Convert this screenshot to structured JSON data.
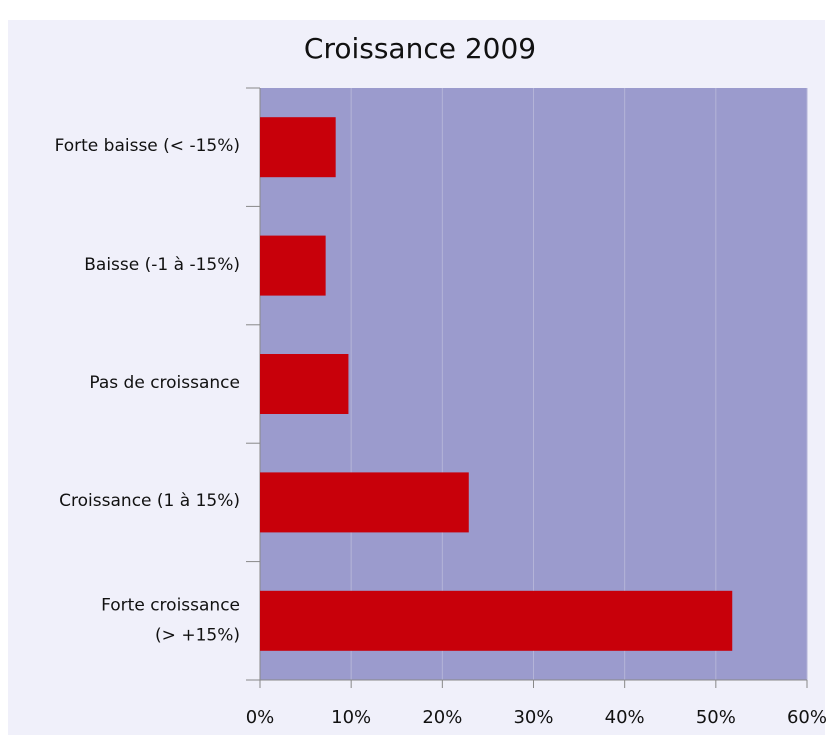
{
  "chart_data": {
    "type": "bar",
    "orientation": "horizontal",
    "title": "Croissance 2009",
    "categories": [
      "Forte baisse (< -15%)",
      "Baisse (-1 à -15%)",
      "Pas de croissance",
      "Croissance (1 à 15%)",
      "Forte croissance\n(> +15%)"
    ],
    "values": [
      8.3,
      7.2,
      9.7,
      22.9,
      51.8
    ],
    "color": "#c8000a",
    "plot_background": "#9b9bcd",
    "xlim": [
      0,
      60
    ],
    "xticks": [
      {
        "value": 0,
        "label": "0%"
      },
      {
        "value": 10,
        "label": "10%"
      },
      {
        "value": 20,
        "label": "20%"
      },
      {
        "value": 30,
        "label": "30%"
      },
      {
        "value": 40,
        "label": "40%"
      },
      {
        "value": 50,
        "label": "50%"
      },
      {
        "value": 60,
        "label": "60%"
      }
    ],
    "grid": true
  }
}
